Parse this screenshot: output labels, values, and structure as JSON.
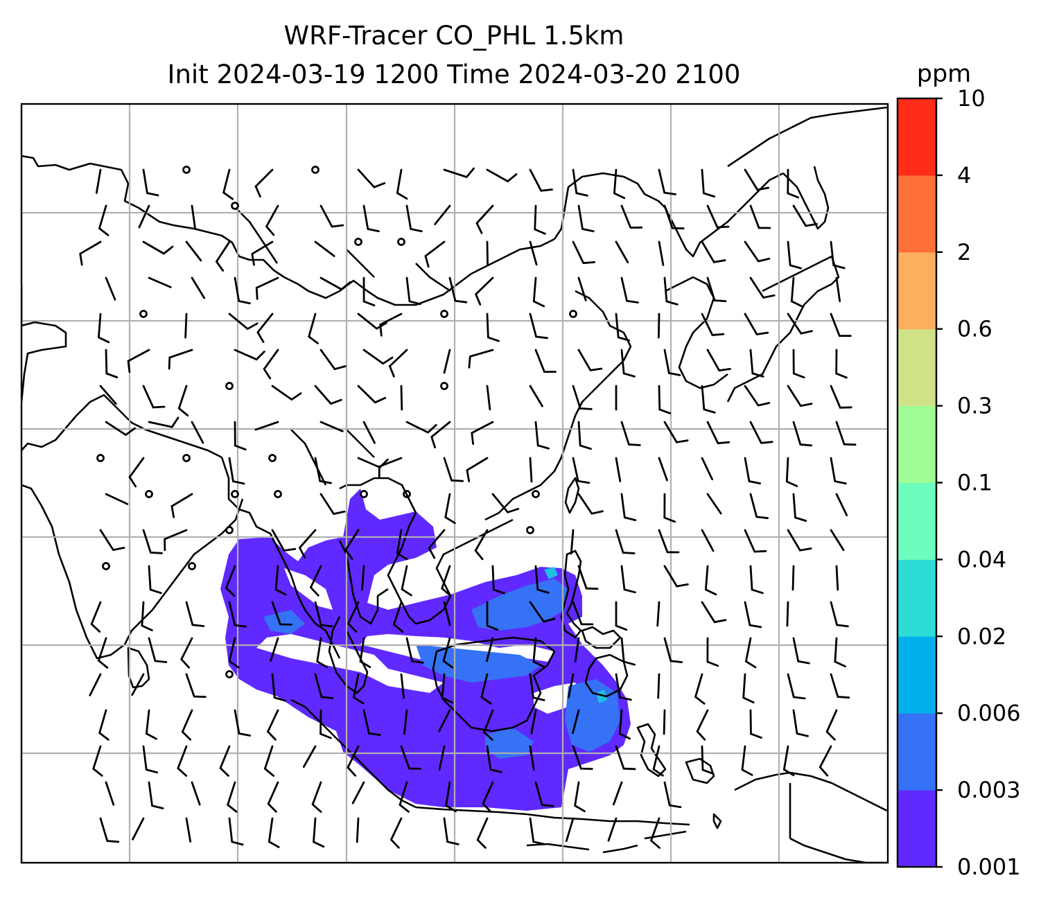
{
  "title": {
    "line1": "WRF-Tracer CO_PHL 1.5km",
    "line2": "Init 2024-03-19 1200 Time 2024-03-20 2100"
  },
  "colorbar": {
    "unit": "ppm",
    "levels": [
      "0.001",
      "0.003",
      "0.006",
      "0.02",
      "0.04",
      "0.1",
      "0.3",
      "0.6",
      "2",
      "4",
      "10"
    ],
    "colors": [
      "#6029ff",
      "#3572f5",
      "#04b0ec",
      "#2ddcd4",
      "#6dfdbf",
      "#9ffd96",
      "#d0e287",
      "#fbaf5f",
      "#ff7138",
      "#ff2c19"
    ]
  },
  "map": {
    "land_outline_color": "#000000",
    "grid_color": "#b0b0b0",
    "barb_color": "#000000",
    "plume_color_low": "#6029ff",
    "plume_color_mid": "#3572f5",
    "plume_color_high": "#1fbfe6"
  }
}
